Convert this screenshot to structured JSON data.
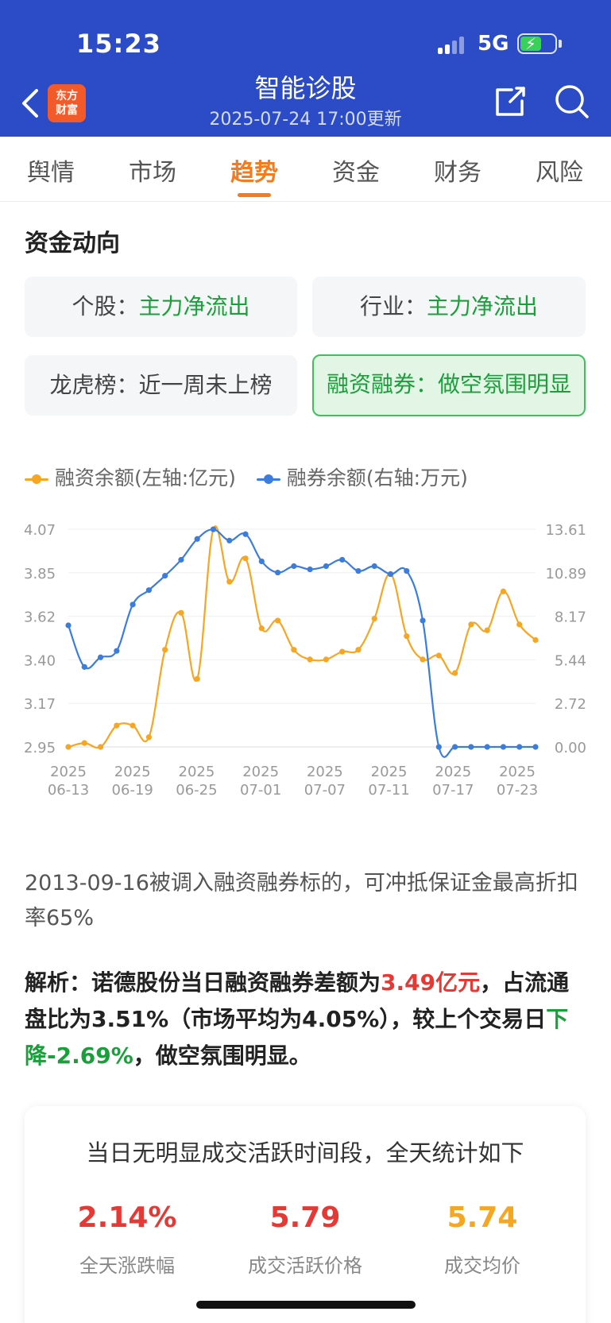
{
  "status_bar": {
    "time": "15:23",
    "network": "5G",
    "battery_charging": true
  },
  "header": {
    "logo_line1": "东方",
    "logo_line2": "财富",
    "title": "智能诊股",
    "subtitle": "2025-07-24 17:00更新"
  },
  "tabs": [
    {
      "label": "舆情"
    },
    {
      "label": "市场"
    },
    {
      "label": "趋势",
      "active": true
    },
    {
      "label": "资金"
    },
    {
      "label": "财务"
    },
    {
      "label": "风险"
    }
  ],
  "section_title": "资金动向",
  "cards": {
    "stock": {
      "key": "个股：",
      "value": "主力净流出"
    },
    "industry": {
      "key": "行业：",
      "value": "主力净流出"
    },
    "dragon_tiger": {
      "key": "龙虎榜：",
      "value": "近一周未上榜"
    },
    "margin": {
      "key": "融资融券：",
      "value": "做空氛围明显",
      "highlight": true
    }
  },
  "chart_data": {
    "type": "line",
    "legend": [
      {
        "name": "融资余额(左轴:亿元)",
        "color": "#f5a623"
      },
      {
        "name": "融券余额(右轴:万元)",
        "color": "#3b7ddd"
      }
    ],
    "left_axis": {
      "ticks": [
        "4.07",
        "3.85",
        "3.62",
        "3.40",
        "3.17",
        "2.95"
      ],
      "range": [
        2.95,
        4.07
      ]
    },
    "right_axis": {
      "ticks": [
        "13.61",
        "10.89",
        "8.17",
        "5.44",
        "2.72",
        "0.00"
      ],
      "range": [
        0.0,
        13.61
      ]
    },
    "x_tick_labels": [
      [
        "2025",
        "06-13"
      ],
      [
        "2025",
        "06-19"
      ],
      [
        "2025",
        "06-25"
      ],
      [
        "2025",
        "07-01"
      ],
      [
        "2025",
        "07-07"
      ],
      [
        "2025",
        "07-11"
      ],
      [
        "2025",
        "07-17"
      ],
      [
        "2025",
        "07-23"
      ]
    ],
    "grid": true,
    "series": [
      {
        "name": "融资余额(左轴:亿元)",
        "axis": "left",
        "color": "#f5a623",
        "values": [
          2.95,
          2.97,
          2.95,
          3.06,
          3.06,
          3.0,
          3.45,
          3.64,
          3.3,
          4.07,
          3.8,
          3.92,
          3.56,
          3.6,
          3.45,
          3.4,
          3.4,
          3.44,
          3.45,
          3.61,
          3.84,
          3.52,
          3.4,
          3.42,
          3.33,
          3.58,
          3.55,
          3.75,
          3.58,
          3.5
        ]
      },
      {
        "name": "融券余额(右轴:万元)",
        "axis": "right",
        "color": "#3b7ddd",
        "values": [
          7.6,
          5.0,
          5.6,
          6.0,
          8.9,
          9.8,
          10.7,
          11.7,
          13.0,
          13.6,
          12.9,
          13.3,
          11.6,
          10.9,
          11.3,
          11.1,
          11.3,
          11.7,
          11.0,
          11.3,
          10.8,
          11.0,
          7.9,
          0.0,
          0.0,
          0.0,
          0.0,
          0.0,
          0.0,
          0.0
        ]
      }
    ]
  },
  "note": "2013-09-16被调入融资融券标的，可冲抵保证金最高折扣率65%",
  "analysis": {
    "p1": "解析：诺德股份当日融资融券差额为",
    "amount": "3.49亿元",
    "p2": "，占流通盘比为3.51%（市场平均为4.05%），较上个交易日",
    "change": "下降-2.69%",
    "p3": "，做空氛围明显。"
  },
  "stats": {
    "title": "当日无明显成交活跃时间段，全天统计如下",
    "items": [
      {
        "value": "2.14%",
        "label": "全天涨跌幅",
        "color": "#e53935"
      },
      {
        "value": "5.79",
        "label": "成交活跃价格",
        "color": "#e53935"
      },
      {
        "value": "5.74",
        "label": "成交均价",
        "color": "#f5a623"
      }
    ]
  }
}
